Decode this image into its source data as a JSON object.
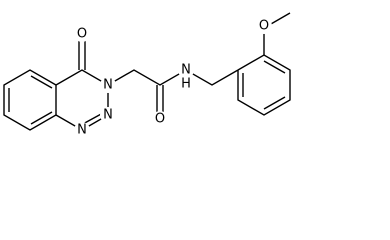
{
  "atoms": [
    "O",
    "N",
    "N",
    "N",
    "O",
    "N",
    "H",
    "O"
  ]
}
